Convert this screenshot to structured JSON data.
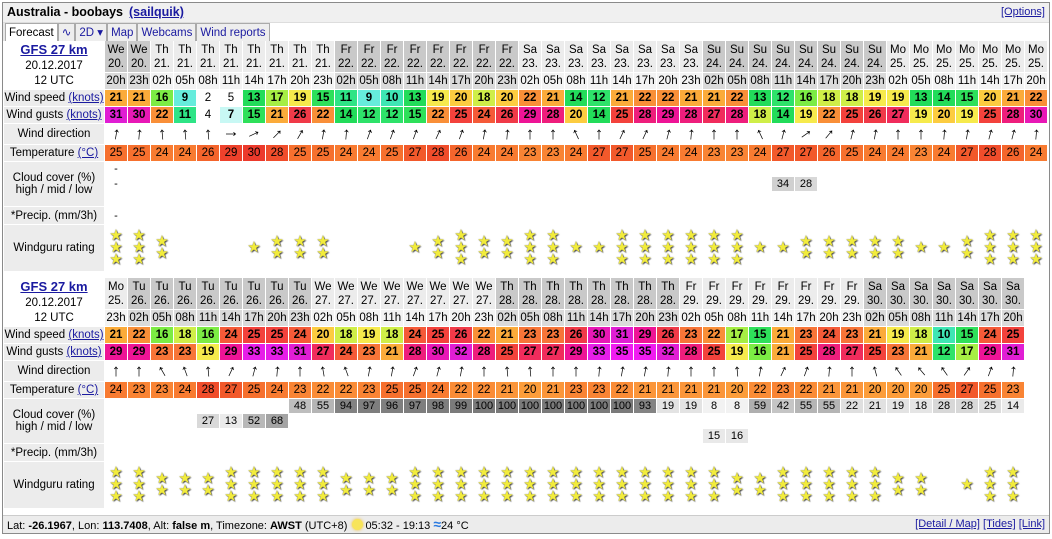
{
  "header": {
    "spot": "Australia - boobays",
    "user_link": "(sailquik)",
    "options_link": "[Options]"
  },
  "tabs": [
    {
      "label": "Forecast",
      "active": true
    },
    {
      "label": "∿",
      "icon": "graph-icon"
    },
    {
      "label": "2D ▾"
    },
    {
      "label": "Map"
    },
    {
      "label": "Webcams"
    },
    {
      "label": "Wind reports"
    }
  ],
  "labels": {
    "wind_speed": "Wind speed",
    "wind_gusts": "Wind gusts",
    "knots": "(knots)",
    "wind_direction": "Wind direction",
    "temperature": "Temperature",
    "celsius": "(°C)",
    "cloud_cover": "Cloud cover (%)",
    "cloud_levels": "high / mid / low",
    "precip": "*Precip. (mm/3h)",
    "rating": "Windguru rating"
  },
  "forecasts": [
    {
      "model": "GFS 27 km",
      "init_date": "20.12.2017",
      "init_time": "12 UTC",
      "days": [
        "We",
        "We",
        "Th",
        "Th",
        "Th",
        "Th",
        "Th",
        "Th",
        "Th",
        "Th",
        "Fr",
        "Fr",
        "Fr",
        "Fr",
        "Fr",
        "Fr",
        "Fr",
        "Fr",
        "Sa",
        "Sa",
        "Sa",
        "Sa",
        "Sa",
        "Sa",
        "Sa",
        "Sa",
        "Su",
        "Su",
        "Su",
        "Su",
        "Su",
        "Su",
        "Su",
        "Su",
        "Mo",
        "Mo",
        "Mo",
        "Mo",
        "Mo",
        "Mo",
        "Mo"
      ],
      "dates": [
        "20.",
        "20.",
        "21.",
        "21.",
        "21.",
        "21.",
        "21.",
        "21.",
        "21.",
        "21.",
        "22.",
        "22.",
        "22.",
        "22.",
        "22.",
        "22.",
        "22.",
        "22.",
        "23.",
        "23.",
        "23.",
        "23.",
        "23.",
        "23.",
        "23.",
        "23.",
        "24.",
        "24.",
        "24.",
        "24.",
        "24.",
        "24.",
        "24.",
        "24.",
        "25.",
        "25.",
        "25.",
        "25.",
        "25.",
        "25.",
        "25."
      ],
      "hours": [
        "20h",
        "23h",
        "02h",
        "05h",
        "08h",
        "11h",
        "14h",
        "17h",
        "20h",
        "23h",
        "02h",
        "05h",
        "08h",
        "11h",
        "14h",
        "17h",
        "20h",
        "23h",
        "02h",
        "05h",
        "08h",
        "11h",
        "14h",
        "17h",
        "20h",
        "23h",
        "02h",
        "05h",
        "08h",
        "11h",
        "14h",
        "17h",
        "20h",
        "23h",
        "02h",
        "05h",
        "08h",
        "11h",
        "14h",
        "17h",
        "20h"
      ],
      "wind_speed": [
        21,
        21,
        16,
        9,
        2,
        5,
        13,
        17,
        19,
        15,
        11,
        9,
        10,
        13,
        19,
        20,
        18,
        20,
        22,
        21,
        14,
        12,
        21,
        22,
        22,
        21,
        21,
        22,
        13,
        12,
        16,
        18,
        18,
        19,
        19,
        13,
        14,
        15,
        20,
        21,
        22
      ],
      "wind_gusts": [
        31,
        30,
        22,
        11,
        4,
        7,
        15,
        21,
        26,
        22,
        14,
        12,
        12,
        15,
        22,
        25,
        24,
        26,
        29,
        28,
        20,
        14,
        25,
        28,
        29,
        28,
        27,
        28,
        18,
        14,
        19,
        22,
        25,
        26,
        27,
        19,
        20,
        19,
        25,
        28,
        30
      ],
      "wind_direction_deg": [
        190,
        185,
        175,
        175,
        175,
        270,
        245,
        225,
        210,
        190,
        185,
        200,
        200,
        200,
        205,
        200,
        190,
        185,
        180,
        180,
        155,
        180,
        205,
        205,
        195,
        185,
        180,
        180,
        155,
        195,
        235,
        220,
        195,
        190,
        180,
        180,
        185,
        190,
        195,
        195,
        185
      ],
      "temperature": [
        25,
        25,
        24,
        24,
        26,
        29,
        30,
        28,
        25,
        25,
        24,
        24,
        25,
        27,
        28,
        26,
        24,
        24,
        23,
        23,
        24,
        27,
        27,
        25,
        24,
        24,
        23,
        23,
        24,
        27,
        27,
        26,
        25,
        24,
        24,
        23,
        24,
        27,
        28,
        26,
        24
      ],
      "cloud_high": [
        "-",
        null,
        null,
        null,
        null,
        null,
        null,
        null,
        null,
        null,
        null,
        null,
        null,
        null,
        null,
        null,
        null,
        null,
        null,
        null,
        null,
        null,
        null,
        null,
        null,
        null,
        null,
        null,
        null,
        null,
        null,
        null,
        null,
        null,
        null,
        null,
        null,
        null,
        null,
        null,
        null
      ],
      "cloud_mid": [
        "-",
        null,
        null,
        null,
        null,
        null,
        null,
        null,
        null,
        null,
        null,
        null,
        null,
        null,
        null,
        null,
        null,
        null,
        null,
        null,
        null,
        null,
        null,
        null,
        null,
        null,
        null,
        null,
        null,
        34,
        28,
        null,
        null,
        null,
        null,
        null,
        null,
        null,
        null,
        null,
        null
      ],
      "cloud_low": [
        null,
        null,
        null,
        null,
        null,
        null,
        null,
        null,
        null,
        null,
        null,
        null,
        null,
        null,
        null,
        null,
        null,
        null,
        null,
        null,
        null,
        null,
        null,
        null,
        null,
        null,
        null,
        null,
        null,
        null,
        null,
        null,
        null,
        null,
        null,
        null,
        null,
        null,
        null,
        null,
        null
      ],
      "precip": [
        "-",
        null,
        null,
        null,
        null,
        null,
        null,
        null,
        null,
        null,
        null,
        null,
        null,
        null,
        null,
        null,
        null,
        null,
        null,
        null,
        null,
        null,
        null,
        null,
        null,
        null,
        null,
        null,
        null,
        null,
        null,
        null,
        null,
        null,
        null,
        null,
        null,
        null,
        null,
        null,
        null
      ],
      "rating": [
        3,
        3,
        2,
        0,
        0,
        0,
        1,
        2,
        2,
        2,
        0,
        0,
        0,
        1,
        2,
        3,
        2,
        2,
        3,
        3,
        1,
        1,
        3,
        3,
        3,
        3,
        3,
        3,
        1,
        1,
        2,
        2,
        2,
        2,
        2,
        1,
        1,
        2,
        3,
        3,
        3
      ]
    },
    {
      "model": "GFS 27 km",
      "init_date": "20.12.2017",
      "init_time": "12 UTC",
      "days": [
        "Mo",
        "Tu",
        "Tu",
        "Tu",
        "Tu",
        "Tu",
        "Tu",
        "Tu",
        "Tu",
        "We",
        "We",
        "We",
        "We",
        "We",
        "We",
        "We",
        "We",
        "Th",
        "Th",
        "Th",
        "Th",
        "Th",
        "Th",
        "Th",
        "Th",
        "Fr",
        "Fr",
        "Fr",
        "Fr",
        "Fr",
        "Fr",
        "Fr",
        "Fr",
        "Sa",
        "Sa",
        "Sa",
        "Sa",
        "Sa",
        "Sa",
        "Sa"
      ],
      "dates": [
        "25.",
        "26.",
        "26.",
        "26.",
        "26.",
        "26.",
        "26.",
        "26.",
        "26.",
        "27.",
        "27.",
        "27.",
        "27.",
        "27.",
        "27.",
        "27.",
        "27.",
        "28.",
        "28.",
        "28.",
        "28.",
        "28.",
        "28.",
        "28.",
        "28.",
        "29.",
        "29.",
        "29.",
        "29.",
        "29.",
        "29.",
        "29.",
        "29.",
        "30.",
        "30.",
        "30.",
        "30.",
        "30.",
        "30.",
        "30."
      ],
      "hours": [
        "23h",
        "02h",
        "05h",
        "08h",
        "11h",
        "14h",
        "17h",
        "20h",
        "23h",
        "02h",
        "05h",
        "08h",
        "11h",
        "14h",
        "17h",
        "20h",
        "23h",
        "02h",
        "05h",
        "08h",
        "11h",
        "14h",
        "17h",
        "20h",
        "23h",
        "02h",
        "05h",
        "08h",
        "11h",
        "14h",
        "17h",
        "20h",
        "23h",
        "02h",
        "05h",
        "08h",
        "11h",
        "14h",
        "17h",
        "20h"
      ],
      "wind_speed": [
        21,
        22,
        16,
        18,
        16,
        24,
        25,
        25,
        24,
        20,
        18,
        19,
        18,
        24,
        25,
        26,
        22,
        21,
        23,
        23,
        26,
        30,
        31,
        29,
        26,
        23,
        22,
        17,
        15,
        21,
        23,
        24,
        23,
        21,
        19,
        18,
        10,
        15,
        24,
        25
      ],
      "wind_gusts": [
        29,
        29,
        23,
        23,
        19,
        29,
        33,
        33,
        31,
        27,
        24,
        23,
        21,
        28,
        30,
        32,
        28,
        25,
        27,
        27,
        29,
        33,
        35,
        35,
        32,
        28,
        25,
        19,
        16,
        21,
        25,
        28,
        27,
        25,
        23,
        21,
        12,
        17,
        29,
        31
      ],
      "wind_direction_deg": [
        180,
        180,
        150,
        160,
        175,
        205,
        195,
        185,
        180,
        170,
        160,
        190,
        190,
        200,
        195,
        190,
        180,
        175,
        175,
        180,
        180,
        185,
        190,
        190,
        185,
        180,
        180,
        175,
        190,
        205,
        200,
        185,
        180,
        165,
        145,
        140,
        145,
        215,
        200,
        185
      ],
      "temperature": [
        24,
        23,
        23,
        24,
        28,
        27,
        25,
        24,
        23,
        22,
        22,
        23,
        25,
        25,
        24,
        22,
        22,
        21,
        20,
        21,
        23,
        23,
        22,
        21,
        21,
        21,
        21,
        20,
        22,
        23,
        22,
        21,
        21,
        20,
        20,
        20,
        25,
        27,
        25,
        23
      ],
      "cloud_high": [
        null,
        null,
        null,
        null,
        null,
        null,
        null,
        null,
        48,
        55,
        94,
        97,
        96,
        97,
        98,
        99,
        100,
        100,
        100,
        100,
        100,
        100,
        100,
        93,
        19,
        19,
        8,
        8,
        59,
        42,
        55,
        55,
        22,
        21,
        19,
        18,
        28,
        28,
        25,
        14
      ],
      "cloud_mid": [
        null,
        null,
        null,
        null,
        27,
        13,
        52,
        68,
        null,
        null,
        null,
        null,
        null,
        null,
        null,
        null,
        null,
        null,
        null,
        null,
        null,
        null,
        null,
        null,
        null,
        null,
        null,
        null,
        null,
        null,
        null,
        null,
        null,
        null,
        null,
        null,
        null,
        null,
        null,
        null
      ],
      "cloud_low": [
        null,
        null,
        null,
        null,
        null,
        null,
        null,
        null,
        null,
        null,
        null,
        null,
        null,
        null,
        null,
        null,
        null,
        null,
        null,
        null,
        null,
        null,
        null,
        null,
        null,
        null,
        15,
        16,
        null,
        null,
        null,
        null,
        null,
        null,
        null,
        null,
        null,
        null,
        null,
        null
      ],
      "precip": [
        null,
        null,
        null,
        null,
        null,
        null,
        null,
        null,
        null,
        null,
        null,
        null,
        null,
        null,
        null,
        null,
        null,
        null,
        null,
        null,
        null,
        null,
        null,
        null,
        null,
        null,
        null,
        null,
        null,
        null,
        null,
        null,
        null,
        null,
        null,
        null,
        null,
        null,
        null,
        null
      ],
      "rating": [
        3,
        3,
        2,
        2,
        2,
        3,
        3,
        3,
        3,
        3,
        2,
        2,
        2,
        3,
        3,
        3,
        3,
        3,
        3,
        3,
        3,
        3,
        3,
        3,
        3,
        3,
        3,
        2,
        2,
        3,
        3,
        3,
        3,
        3,
        2,
        2,
        0,
        1,
        3,
        3
      ]
    }
  ],
  "footer": {
    "lat_label": "Lat:",
    "lat": "-26.1967",
    "lon_label": ", Lon:",
    "lon": "113.7408",
    "alt_label": ", Alt:",
    "alt": "false m",
    "tz_label": ", Timezone:",
    "tz": "AWST",
    "tz_offset": "(UTC+8)",
    "sun_times": "05:32 - 19:13",
    "water_temp": "24 °C",
    "links": [
      "[Detail / Map]",
      "[Tides]",
      "[Link]"
    ]
  }
}
